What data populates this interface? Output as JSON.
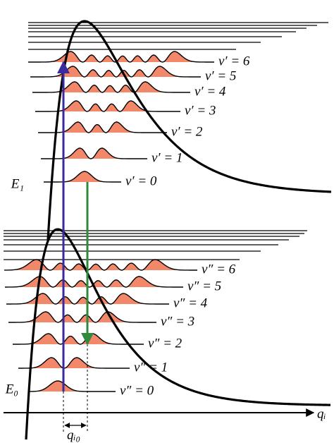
{
  "upper_state": {
    "label": "E₁",
    "levels": [
      "ν′ = 0",
      "ν′ = 1",
      "ν′ = 2",
      "ν′ = 3",
      "ν′ = 4",
      "ν′ = 5",
      "ν′ = 6"
    ]
  },
  "lower_state": {
    "label": "E₀",
    "levels": [
      "ν″ = 0",
      "ν″ = 1",
      "ν″ = 2",
      "ν″ = 3",
      "ν″ = 4",
      "ν″ = 5",
      "ν″ = 6"
    ]
  },
  "axis": {
    "label": "qᵢ",
    "displacement_label": "qᵢ₀"
  }
}
